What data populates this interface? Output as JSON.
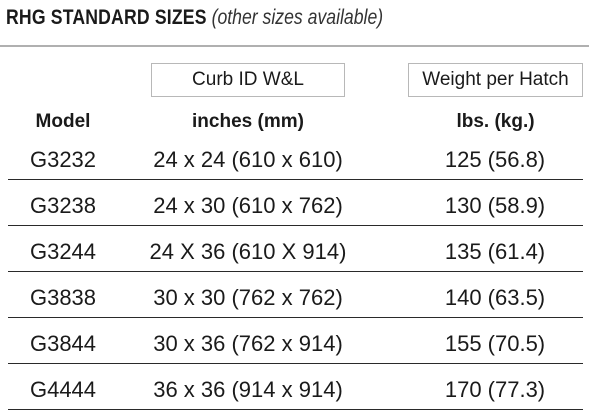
{
  "title": {
    "main": "RHG STANDARD SIZES",
    "note": "(other sizes available)"
  },
  "headers": {
    "curb_box": "Curb ID  W&L",
    "weight_box": "Weight per Hatch",
    "model": "Model",
    "size_units": "inches (mm)",
    "weight_units": "lbs. (kg.)"
  },
  "rows": [
    {
      "model": "G3232",
      "size": "24 x 24 (610 x 610)",
      "weight": "125 (56.8)"
    },
    {
      "model": "G3238",
      "size": "24 x 30 (610 x 762)",
      "weight": "130 (58.9)"
    },
    {
      "model": "G3244",
      "size": "24 X 36 (610 X 914)",
      "weight": "135 (61.4)"
    },
    {
      "model": "G3838",
      "size": "30 x 30 (762 x 762)",
      "weight": "140 (63.5)"
    },
    {
      "model": "G3844",
      "size": "30 x 36 (762 x 914)",
      "weight": "155 (70.5)"
    },
    {
      "model": "G4444",
      "size": "36 x 36 (914 x 914)",
      "weight": "170 (77.3)"
    }
  ]
}
